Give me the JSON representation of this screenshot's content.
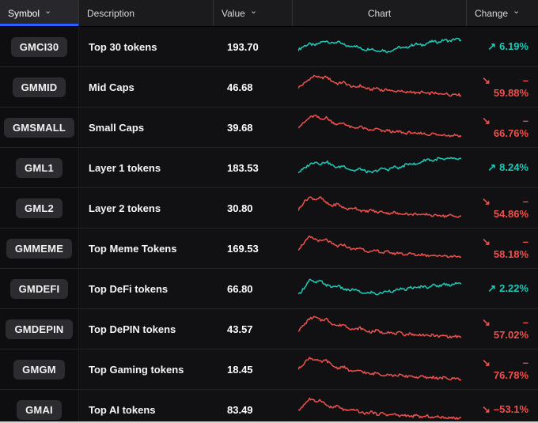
{
  "header": {
    "columns": [
      {
        "id": "symbol",
        "label": "Symbol",
        "sortable": true,
        "active": true
      },
      {
        "id": "description",
        "label": "Description",
        "sortable": false
      },
      {
        "id": "value",
        "label": "Value",
        "sortable": true
      },
      {
        "id": "chart",
        "label": "Chart",
        "sortable": false
      },
      {
        "id": "change",
        "label": "Change",
        "sortable": true
      }
    ]
  },
  "icons": {
    "chevron_down": "⌄",
    "up_arrow": "↗",
    "down_arrow": "↘"
  },
  "colors": {
    "up": "#1ec9b8",
    "down": "#f0504c",
    "accent_blue": "#2962ff"
  },
  "rows": [
    {
      "symbol": "GMCI30",
      "description": "Top 30 tokens",
      "value": "193.70",
      "trend": "up",
      "change_lines": [
        "6.19%"
      ],
      "spark": [
        0.38,
        0.52,
        0.6,
        0.55,
        0.66,
        0.72,
        0.62,
        0.68,
        0.58,
        0.5,
        0.55,
        0.44,
        0.38,
        0.44,
        0.33,
        0.38,
        0.3,
        0.4,
        0.48,
        0.44,
        0.54,
        0.6,
        0.55,
        0.64,
        0.7,
        0.66,
        0.76,
        0.7,
        0.8,
        0.74
      ]
    },
    {
      "symbol": "GMMID",
      "description": "Mid Caps",
      "value": "46.68",
      "trend": "down",
      "change_lines": [
        "–",
        "59.88%"
      ],
      "spark": [
        0.48,
        0.62,
        0.8,
        0.92,
        0.82,
        0.88,
        0.72,
        0.62,
        0.68,
        0.56,
        0.48,
        0.55,
        0.45,
        0.4,
        0.47,
        0.36,
        0.41,
        0.32,
        0.37,
        0.28,
        0.34,
        0.26,
        0.31,
        0.24,
        0.29,
        0.22,
        0.27,
        0.2,
        0.25,
        0.18
      ]
    },
    {
      "symbol": "GMSMALL",
      "description": "Small Caps",
      "value": "39.68",
      "trend": "down",
      "change_lines": [
        "–",
        "66.76%"
      ],
      "spark": [
        0.52,
        0.66,
        0.86,
        0.93,
        0.8,
        0.86,
        0.7,
        0.6,
        0.67,
        0.53,
        0.46,
        0.53,
        0.43,
        0.38,
        0.45,
        0.34,
        0.39,
        0.3,
        0.35,
        0.27,
        0.32,
        0.24,
        0.29,
        0.22,
        0.27,
        0.2,
        0.24,
        0.18,
        0.22,
        0.16
      ]
    },
    {
      "symbol": "GML1",
      "description": "Layer 1 tokens",
      "value": "183.53",
      "trend": "up",
      "change_lines": [
        "8.24%"
      ],
      "spark": [
        0.32,
        0.46,
        0.62,
        0.72,
        0.63,
        0.73,
        0.58,
        0.5,
        0.57,
        0.45,
        0.38,
        0.46,
        0.36,
        0.31,
        0.39,
        0.47,
        0.42,
        0.53,
        0.48,
        0.59,
        0.67,
        0.61,
        0.73,
        0.82,
        0.75,
        0.85,
        0.78,
        0.86,
        0.8,
        0.83
      ]
    },
    {
      "symbol": "GML2",
      "description": "Layer 2 tokens",
      "value": "30.80",
      "trend": "down",
      "change_lines": [
        "–",
        "54.86%"
      ],
      "spark": [
        0.42,
        0.72,
        0.9,
        0.82,
        0.88,
        0.68,
        0.58,
        0.65,
        0.51,
        0.45,
        0.52,
        0.41,
        0.36,
        0.43,
        0.33,
        0.37,
        0.29,
        0.34,
        0.26,
        0.31,
        0.24,
        0.29,
        0.22,
        0.27,
        0.2,
        0.25,
        0.19,
        0.23,
        0.17,
        0.21
      ]
    },
    {
      "symbol": "GMMEME",
      "description": "Top Meme Tokens",
      "value": "169.53",
      "trend": "down",
      "change_lines": [
        "–",
        "58.18%"
      ],
      "spark": [
        0.46,
        0.7,
        0.92,
        0.84,
        0.76,
        0.82,
        0.66,
        0.57,
        0.64,
        0.51,
        0.45,
        0.52,
        0.41,
        0.36,
        0.42,
        0.33,
        0.38,
        0.29,
        0.34,
        0.26,
        0.31,
        0.24,
        0.28,
        0.22,
        0.26,
        0.2,
        0.24,
        0.18,
        0.22,
        0.17
      ]
    },
    {
      "symbol": "GMDEFI",
      "description": "Top DeFi tokens",
      "value": "66.80",
      "trend": "up",
      "change_lines": [
        "2.22%"
      ],
      "spark": [
        0.26,
        0.52,
        0.82,
        0.72,
        0.78,
        0.63,
        0.56,
        0.61,
        0.49,
        0.43,
        0.47,
        0.37,
        0.31,
        0.37,
        0.29,
        0.35,
        0.43,
        0.39,
        0.49,
        0.45,
        0.55,
        0.51,
        0.59,
        0.55,
        0.63,
        0.59,
        0.67,
        0.63,
        0.71,
        0.67
      ]
    },
    {
      "symbol": "GMDEPIN",
      "description": "Top DePIN tokens",
      "value": "43.57",
      "trend": "down",
      "change_lines": [
        "–",
        "57.02%"
      ],
      "spark": [
        0.44,
        0.64,
        0.88,
        0.94,
        0.82,
        0.87,
        0.7,
        0.61,
        0.67,
        0.54,
        0.47,
        0.54,
        0.43,
        0.38,
        0.45,
        0.35,
        0.4,
        0.31,
        0.36,
        0.28,
        0.33,
        0.25,
        0.3,
        0.23,
        0.28,
        0.21,
        0.26,
        0.19,
        0.23,
        0.17
      ]
    },
    {
      "symbol": "GMGM",
      "description": "Top Gaming tokens",
      "value": "18.45",
      "trend": "down",
      "change_lines": [
        "–",
        "76.78%"
      ],
      "spark": [
        0.5,
        0.72,
        0.93,
        0.85,
        0.77,
        0.83,
        0.64,
        0.54,
        0.6,
        0.46,
        0.4,
        0.46,
        0.36,
        0.31,
        0.37,
        0.28,
        0.32,
        0.25,
        0.29,
        0.22,
        0.26,
        0.19,
        0.23,
        0.17,
        0.21,
        0.15,
        0.19,
        0.13,
        0.17,
        0.12
      ]
    },
    {
      "symbol": "GMAI",
      "description": "Top AI tokens",
      "value": "83.49",
      "trend": "down",
      "change_lines": [
        "–53.1%"
      ],
      "spark": [
        0.45,
        0.68,
        0.9,
        0.8,
        0.86,
        0.66,
        0.57,
        0.63,
        0.5,
        0.44,
        0.51,
        0.4,
        0.35,
        0.42,
        0.32,
        0.37,
        0.29,
        0.33,
        0.26,
        0.3,
        0.23,
        0.28,
        0.21,
        0.26,
        0.2,
        0.24,
        0.18,
        0.22,
        0.17,
        0.2
      ]
    }
  ]
}
